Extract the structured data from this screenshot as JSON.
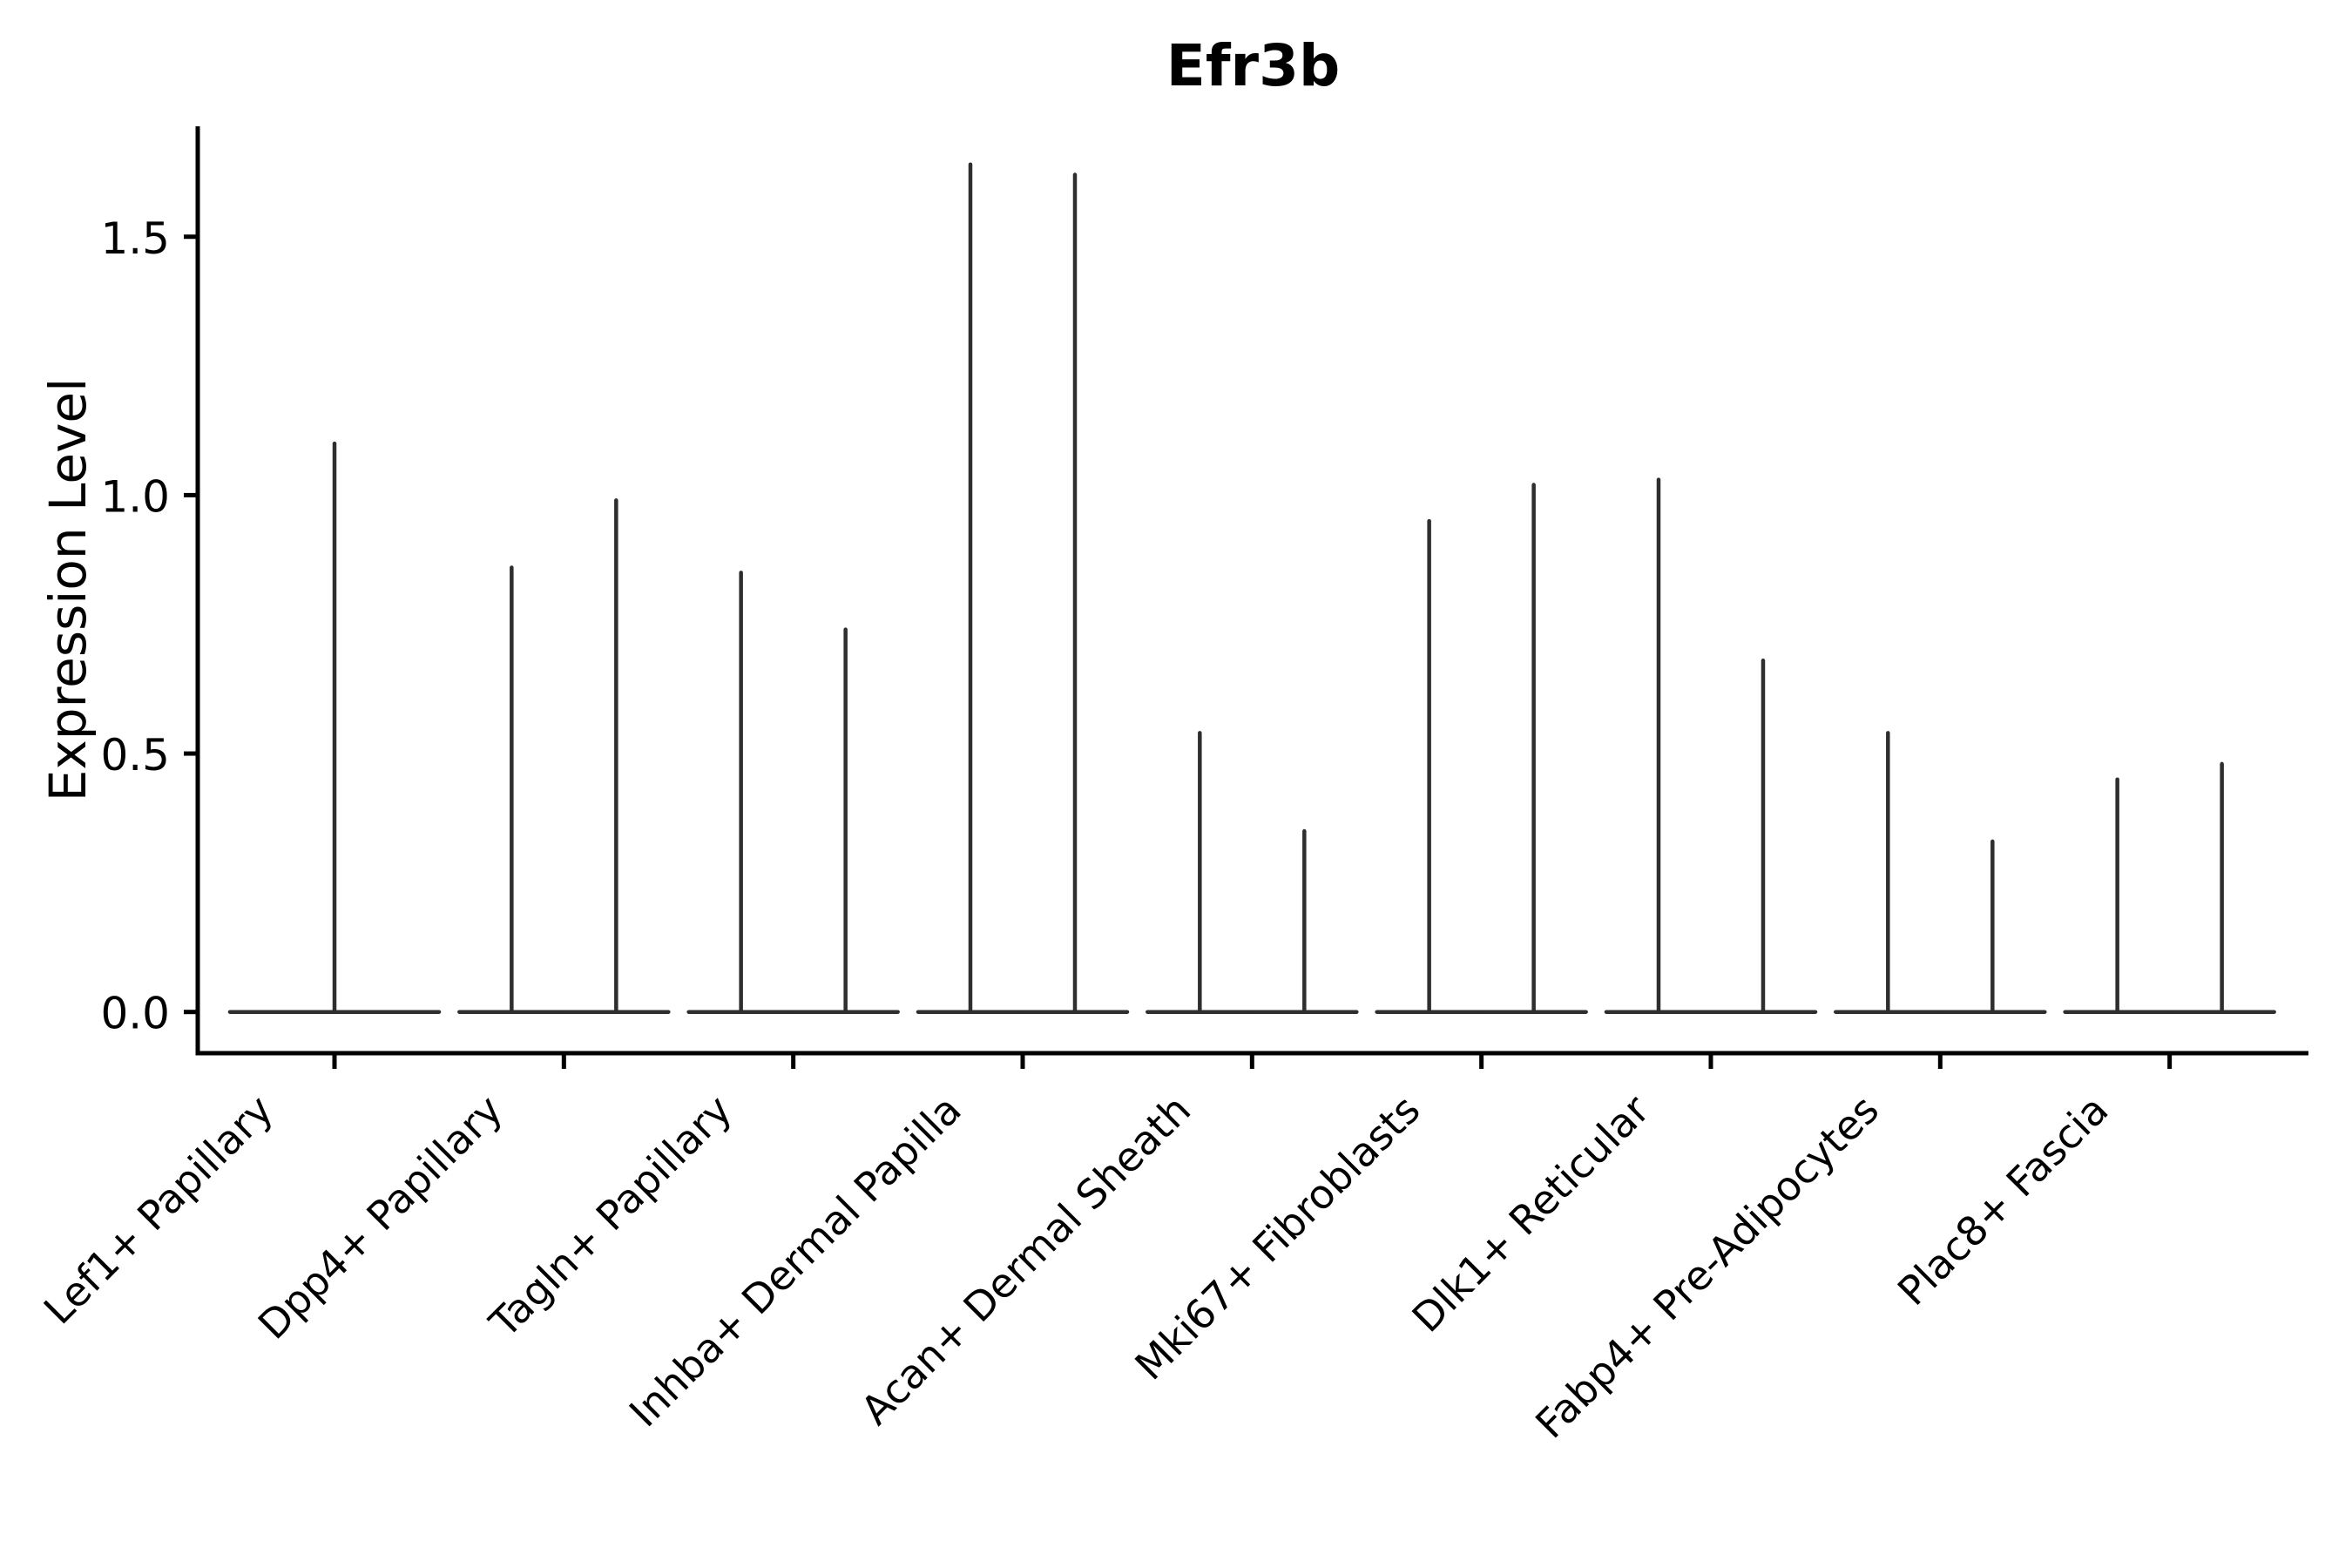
{
  "chart_data": {
    "type": "violin",
    "title": "Efr3b",
    "ylabel": "Expression Level",
    "xlabel": "",
    "legend": "none",
    "grid": false,
    "background": "#ffffff",
    "colors": {
      "axis": "#000000",
      "text": "#000000",
      "violin": "#2e2e2e"
    },
    "ylim": [
      -0.08,
      1.71
    ],
    "x_tick_rotation": 45,
    "y_ticks": [
      {
        "value": 0.0,
        "label": "0.0"
      },
      {
        "value": 0.5,
        "label": "0.5"
      },
      {
        "value": 1.0,
        "label": "1.0"
      },
      {
        "value": 1.5,
        "label": "1.5"
      }
    ],
    "categories": [
      "Lef1+ Papillary",
      "Dpp4+ Papillary",
      "Tagln+ Papillary",
      "Inhba+ Dermal Papilla",
      "Acan+ Dermal Sheath",
      "Mki67+ Fibroblasts",
      "Dlk1+ Reticular",
      "Fabp4+ Pre-Adipocytes",
      "Plac8+ Fascia"
    ],
    "groups": [
      {
        "label": "Lef1+ Papillary",
        "violin_max_expression": [
          1.1
        ]
      },
      {
        "label": "Dpp4+ Papillary",
        "violin_max_expression": [
          0.86,
          0.99
        ]
      },
      {
        "label": "Tagln+ Papillary",
        "violin_max_expression": [
          0.85,
          0.74
        ]
      },
      {
        "label": "Inhba+ Dermal Papilla",
        "violin_max_expression": [
          1.64,
          1.62
        ]
      },
      {
        "label": "Acan+ Dermal Sheath",
        "violin_max_expression": [
          0.54,
          0.35
        ]
      },
      {
        "label": "Mki67+ Fibroblasts",
        "violin_max_expression": [
          0.95,
          1.02
        ]
      },
      {
        "label": "Dlk1+ Reticular",
        "violin_max_expression": [
          1.03,
          0.68
        ]
      },
      {
        "label": "Fabp4+ Pre-Adipocytes",
        "violin_max_expression": [
          0.54,
          0.33
        ]
      },
      {
        "label": "Plac8+ Fascia",
        "violin_max_expression": [
          0.45,
          0.48
        ]
      }
    ]
  }
}
